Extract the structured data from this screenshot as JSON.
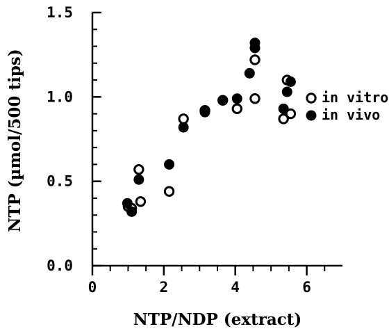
{
  "chart_data": {
    "type": "scatter",
    "title": "",
    "xlabel": "NTP/NDP (extract)",
    "ylabel": "NTP (µmol/500 tips)",
    "xlim": [
      0,
      7
    ],
    "ylim": [
      0,
      1.5
    ],
    "x_ticks": [
      "0",
      "2",
      "4",
      "6"
    ],
    "y_ticks": [
      "0.0",
      "0.5",
      "1.0",
      "1.5"
    ],
    "grid": false,
    "legend_position": "right",
    "series": [
      {
        "name": "in vitro",
        "marker": "open-circle",
        "color": "#000000",
        "points": [
          {
            "x": 1.0,
            "y": 0.35
          },
          {
            "x": 1.1,
            "y": 0.34
          },
          {
            "x": 1.3,
            "y": 0.57
          },
          {
            "x": 1.35,
            "y": 0.38
          },
          {
            "x": 2.15,
            "y": 0.44
          },
          {
            "x": 2.55,
            "y": 0.87
          },
          {
            "x": 3.15,
            "y": 0.92
          },
          {
            "x": 3.65,
            "y": 0.98
          },
          {
            "x": 4.05,
            "y": 0.93
          },
          {
            "x": 4.55,
            "y": 0.99
          },
          {
            "x": 4.55,
            "y": 1.22
          },
          {
            "x": 5.35,
            "y": 0.87
          },
          {
            "x": 5.45,
            "y": 1.1
          },
          {
            "x": 5.55,
            "y": 0.9
          }
        ]
      },
      {
        "name": "in vivo",
        "marker": "filled-circle",
        "color": "#000000",
        "points": [
          {
            "x": 0.98,
            "y": 0.37
          },
          {
            "x": 1.1,
            "y": 0.32
          },
          {
            "x": 1.3,
            "y": 0.51
          },
          {
            "x": 2.15,
            "y": 0.6
          },
          {
            "x": 2.55,
            "y": 0.82
          },
          {
            "x": 3.15,
            "y": 0.91
          },
          {
            "x": 3.65,
            "y": 0.98
          },
          {
            "x": 4.05,
            "y": 0.99
          },
          {
            "x": 4.4,
            "y": 1.14
          },
          {
            "x": 4.55,
            "y": 1.29
          },
          {
            "x": 4.55,
            "y": 1.32
          },
          {
            "x": 5.35,
            "y": 0.93
          },
          {
            "x": 5.45,
            "y": 1.03
          },
          {
            "x": 5.55,
            "y": 1.09
          }
        ]
      }
    ]
  }
}
